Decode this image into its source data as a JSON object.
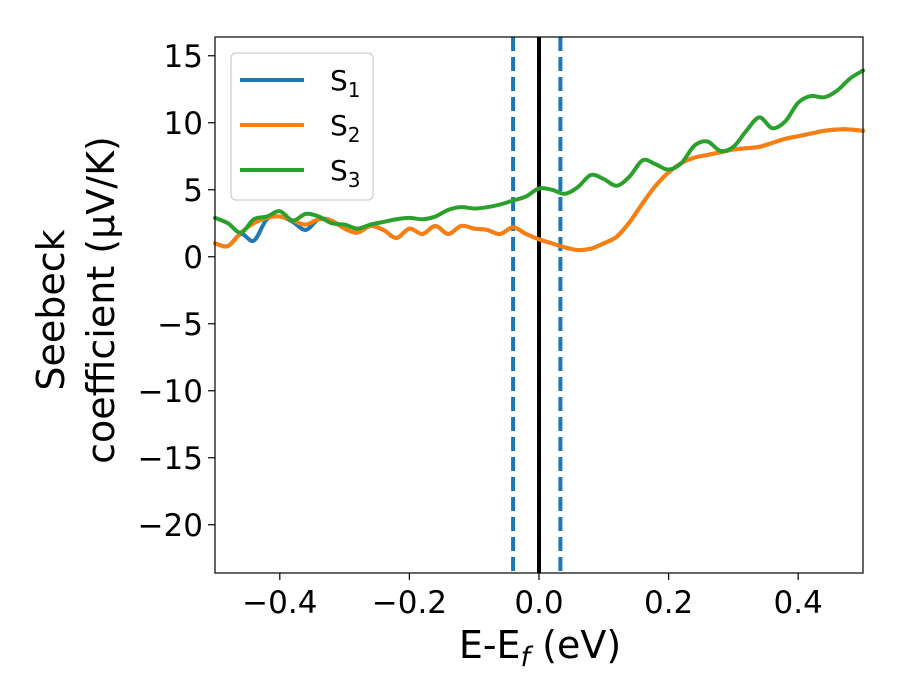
{
  "chart_data": {
    "type": "line",
    "xlabel": {
      "main": "E-E",
      "sub": "f",
      "unit": " (eV)"
    },
    "ylabel": {
      "line1": "Seebeck",
      "line2": "coefficient  (μV/K)"
    },
    "xlim": [
      -0.5,
      0.5
    ],
    "ylim": [
      -23.6,
      16.4
    ],
    "x_ticks": [
      -0.4,
      -0.2,
      0.0,
      0.2,
      0.4
    ],
    "x_tick_labels": [
      "−0.4",
      "−0.2",
      "0.0",
      "0.2",
      "0.4"
    ],
    "y_ticks": [
      15,
      10,
      5,
      0,
      -5,
      -10,
      -15,
      -20
    ],
    "y_tick_labels": [
      "15",
      "10",
      "5",
      "0",
      "−5",
      "−10",
      "−15",
      "−20"
    ],
    "legend_position": "top-left",
    "grid": false,
    "vlines": [
      {
        "x": -0.04,
        "style": "dashed",
        "color": "#1f77b4"
      },
      {
        "x": 0.033,
        "style": "dashed",
        "color": "#1f77b4"
      },
      {
        "x": 0.0,
        "style": "solid",
        "color": "#000000"
      }
    ],
    "series": [
      {
        "name": {
          "base": "S",
          "sub": "1"
        },
        "color": "#1f77b4",
        "x": [
          -0.5,
          -0.48,
          -0.46,
          -0.44,
          -0.42,
          -0.4,
          -0.38,
          -0.36,
          -0.34,
          -0.32,
          -0.3,
          -0.28,
          -0.26,
          -0.24,
          -0.22,
          -0.2,
          -0.18,
          -0.16,
          -0.14,
          -0.12,
          -0.1,
          -0.08,
          -0.06,
          -0.04,
          -0.02,
          0.0,
          0.02,
          0.04,
          0.06,
          0.08,
          0.1,
          0.12,
          0.14,
          0.16,
          0.18,
          0.2,
          0.22,
          0.24,
          0.26,
          0.28,
          0.3,
          0.32,
          0.34,
          0.36,
          0.38,
          0.4,
          0.42,
          0.44,
          0.46,
          0.48,
          0.5
        ],
        "y": [
          1.0,
          0.8,
          1.7,
          1.2,
          2.8,
          3.0,
          2.6,
          2.0,
          2.8,
          2.7,
          2.1,
          1.8,
          2.3,
          2.0,
          1.4,
          2.1,
          1.7,
          2.3,
          1.7,
          2.3,
          2.1,
          2.0,
          1.7,
          2.2,
          1.7,
          1.3,
          1.0,
          0.7,
          0.5,
          0.6,
          1.0,
          1.5,
          2.6,
          4.0,
          5.3,
          6.3,
          7.0,
          7.4,
          7.6,
          7.8,
          8.0,
          8.1,
          8.2,
          8.5,
          8.8,
          9.0,
          9.2,
          9.4,
          9.5,
          9.5,
          9.4
        ]
      },
      {
        "name": {
          "base": "S",
          "sub": "2"
        },
        "color": "#ff7f0e",
        "x": [
          -0.5,
          -0.48,
          -0.46,
          -0.44,
          -0.42,
          -0.4,
          -0.38,
          -0.36,
          -0.34,
          -0.32,
          -0.3,
          -0.28,
          -0.26,
          -0.24,
          -0.22,
          -0.2,
          -0.18,
          -0.16,
          -0.14,
          -0.12,
          -0.1,
          -0.08,
          -0.06,
          -0.04,
          -0.02,
          0.0,
          0.02,
          0.04,
          0.06,
          0.08,
          0.1,
          0.12,
          0.14,
          0.16,
          0.18,
          0.2,
          0.22,
          0.24,
          0.26,
          0.28,
          0.3,
          0.32,
          0.34,
          0.36,
          0.38,
          0.4,
          0.42,
          0.44,
          0.46,
          0.48,
          0.5
        ],
        "y": [
          1.0,
          0.8,
          1.8,
          2.5,
          2.9,
          3.0,
          2.7,
          2.4,
          2.8,
          2.7,
          2.1,
          1.8,
          2.3,
          2.0,
          1.4,
          2.1,
          1.7,
          2.3,
          1.7,
          2.3,
          2.1,
          2.0,
          1.7,
          2.2,
          1.7,
          1.3,
          1.0,
          0.7,
          0.5,
          0.6,
          1.0,
          1.5,
          2.6,
          4.0,
          5.3,
          6.3,
          7.0,
          7.4,
          7.6,
          7.8,
          8.0,
          8.1,
          8.2,
          8.5,
          8.8,
          9.0,
          9.2,
          9.4,
          9.5,
          9.5,
          9.4
        ]
      },
      {
        "name": {
          "base": "S",
          "sub": "3"
        },
        "color": "#2ca02c",
        "x": [
          -0.5,
          -0.48,
          -0.46,
          -0.44,
          -0.42,
          -0.4,
          -0.38,
          -0.36,
          -0.34,
          -0.32,
          -0.3,
          -0.28,
          -0.26,
          -0.24,
          -0.22,
          -0.2,
          -0.18,
          -0.16,
          -0.14,
          -0.12,
          -0.1,
          -0.08,
          -0.06,
          -0.04,
          -0.02,
          0.0,
          0.02,
          0.04,
          0.06,
          0.08,
          0.1,
          0.12,
          0.14,
          0.16,
          0.18,
          0.2,
          0.22,
          0.24,
          0.26,
          0.28,
          0.3,
          0.32,
          0.34,
          0.36,
          0.38,
          0.4,
          0.42,
          0.44,
          0.46,
          0.48,
          0.5
        ],
        "y": [
          2.9,
          2.5,
          1.8,
          2.8,
          3.0,
          3.4,
          2.7,
          3.2,
          3.0,
          2.5,
          2.4,
          2.1,
          2.4,
          2.6,
          2.8,
          2.9,
          2.8,
          3.0,
          3.5,
          3.7,
          3.6,
          3.7,
          3.9,
          4.2,
          4.5,
          5.1,
          5.0,
          4.7,
          5.2,
          6.1,
          5.8,
          5.3,
          6.0,
          7.2,
          6.9,
          6.5,
          7.0,
          8.3,
          8.6,
          7.9,
          8.2,
          9.4,
          10.4,
          9.6,
          10.1,
          11.5,
          12.0,
          11.9,
          12.4,
          13.3,
          13.9
        ]
      }
    ]
  }
}
